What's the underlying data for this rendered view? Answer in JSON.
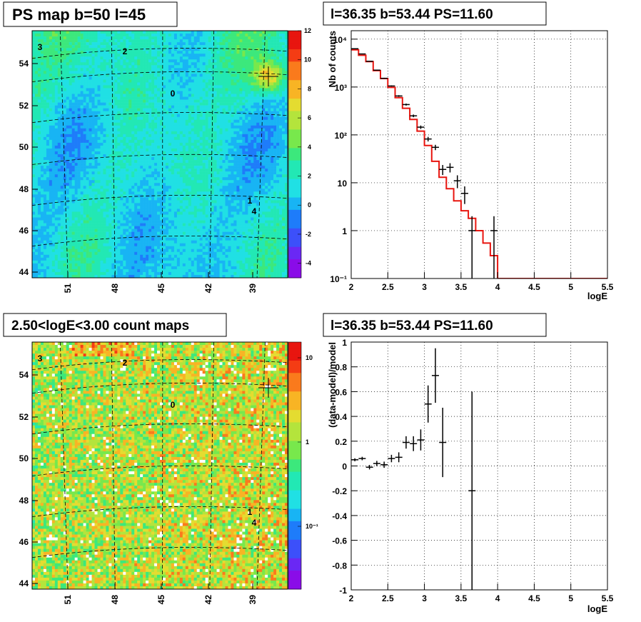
{
  "panels": {
    "ps_map_title": "PS map b=50 l=45",
    "count_map_title": "2.50<logE<3.00 count maps",
    "spectrum_title": "l=36.35 b=53.44 PS=11.60",
    "residual_title": "l=36.35 b=53.44 PS=11.60"
  },
  "chart_data": [
    {
      "type": "heatmap",
      "title": "PS map b=50 l=45",
      "x_ticks": [
        "51",
        "48",
        "45",
        "42",
        "39"
      ],
      "y_ticks": [
        "44",
        "46",
        "48",
        "50",
        "52",
        "54"
      ],
      "colorbar_ticks": [
        "12",
        "10",
        "8",
        "6",
        "4",
        "2",
        "0",
        "-2",
        "-4"
      ],
      "colorbar_range": [
        -5,
        12
      ],
      "source_labels": [
        "0",
        "1",
        "2",
        "3",
        "4"
      ],
      "colors": {
        "background": "#20e8dc",
        "mid": "#7ce87c",
        "hot": "#f0d020"
      }
    },
    {
      "type": "heatmap",
      "title": "2.50<logE<3.00 count maps",
      "x_ticks": [
        "51",
        "48",
        "45",
        "42",
        "39"
      ],
      "y_ticks": [
        "44",
        "46",
        "48",
        "50",
        "52",
        "54"
      ],
      "colorbar_ticks": [
        "10",
        "1",
        "10⁻¹"
      ],
      "colorbar_scale": "log",
      "source_labels": [
        "0",
        "1",
        "2",
        "3",
        "4"
      ]
    },
    {
      "type": "line",
      "title": "l=36.35 b=53.44 PS=11.60",
      "xlabel": "logE",
      "ylabel": "Nb of counts",
      "xlim": [
        2,
        5.5
      ],
      "ylim": [
        0.1,
        15000
      ],
      "yscale": "log",
      "grid": true,
      "x_ticks": [
        "2",
        "2.5",
        "3",
        "3.5",
        "4",
        "4.5",
        "5",
        "5.5"
      ],
      "y_ticks": [
        "10⁻¹",
        "1",
        "10",
        "10²",
        "10³",
        "10⁴"
      ],
      "series": [
        {
          "color": "#e8150f",
          "style": "step",
          "edges": [
            2.0,
            2.1,
            2.2,
            2.3,
            2.4,
            2.5,
            2.6,
            2.7,
            2.8,
            2.9,
            3.0,
            3.1,
            3.2,
            3.3,
            3.4,
            3.5,
            3.6,
            3.7,
            3.8,
            3.9,
            4.0,
            4.1,
            4.2,
            4.3,
            4.4,
            4.5,
            4.6,
            4.7,
            4.8,
            4.9,
            5.0,
            5.1,
            5.2,
            5.3,
            5.4,
            5.5
          ],
          "values": [
            6000,
            4600,
            3400,
            2200,
            1500,
            980,
            600,
            360,
            210,
            120,
            60,
            28,
            13,
            7.5,
            4.2,
            2.6,
            1.8,
            1.0,
            0.55,
            0.3,
            0.1,
            0.1,
            0.1,
            0.1,
            0.1,
            0.1,
            0.1,
            0.1,
            0.1,
            0.1,
            0.1,
            0.1,
            0.1,
            0.1,
            0.1
          ]
        },
        {
          "color": "#000000",
          "style": "errorbar",
          "x": [
            2.05,
            2.15,
            2.25,
            2.35,
            2.45,
            2.55,
            2.65,
            2.75,
            2.85,
            2.95,
            3.05,
            3.15,
            3.25,
            3.35,
            3.45,
            3.55,
            3.65,
            3.95
          ],
          "y": [
            6300,
            4900,
            3450,
            2250,
            1520,
            1050,
            650,
            430,
            250,
            145,
            82,
            55,
            19,
            21,
            11,
            6,
            1,
            1
          ],
          "err_low": [
            80,
            70,
            60,
            45,
            38,
            30,
            25,
            21,
            16,
            12,
            9,
            7,
            4.5,
            4.6,
            3.3,
            2.4,
            0.95,
            0.95
          ],
          "err_high": [
            80,
            70,
            60,
            45,
            38,
            30,
            25,
            21,
            16,
            12,
            9,
            7,
            4.5,
            4.6,
            3.3,
            2.4,
            1.0,
            1.0
          ]
        }
      ]
    },
    {
      "type": "scatter",
      "title": "l=36.35 b=53.44 PS=11.60",
      "xlabel": "logE",
      "ylabel": "(data-model)/model",
      "xlim": [
        2,
        5.5
      ],
      "ylim": [
        -1,
        1
      ],
      "grid": true,
      "x_ticks": [
        "2",
        "2.5",
        "3",
        "3.5",
        "4",
        "4.5",
        "5",
        "5.5"
      ],
      "y_ticks": [
        "-1",
        "-0.8",
        "-0.6",
        "-0.4",
        "-0.2",
        "0",
        "0.2",
        "0.4",
        "0.6",
        "0.8",
        "1"
      ],
      "series": [
        {
          "color": "#000000",
          "style": "errorbar",
          "x": [
            2.05,
            2.15,
            2.25,
            2.35,
            2.45,
            2.55,
            2.65,
            2.75,
            2.85,
            2.95,
            3.05,
            3.15,
            3.25,
            3.65
          ],
          "y": [
            0.05,
            0.06,
            -0.01,
            0.02,
            0.01,
            0.06,
            0.07,
            0.19,
            0.18,
            0.21,
            0.5,
            0.73,
            0.19,
            -0.2
          ],
          "err": [
            0.012,
            0.014,
            0.018,
            0.021,
            0.025,
            0.03,
            0.04,
            0.05,
            0.06,
            0.085,
            0.15,
            0.22,
            0.28,
            0.8
          ]
        }
      ]
    }
  ]
}
